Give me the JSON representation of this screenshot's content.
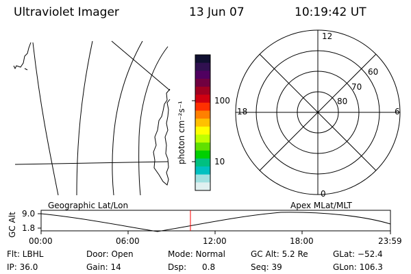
{
  "header": {
    "instrument": "Ultraviolet Imager",
    "date": "13 Jun 07",
    "time": "10:19:42 UT"
  },
  "colorbar": {
    "unit_label": "photon cm⁻²s⁻¹",
    "ticks": [
      "100",
      "10"
    ],
    "colors": [
      "#101030",
      "#301050",
      "#500060",
      "#700040",
      "#a00020",
      "#d00010",
      "#ff3000",
      "#ff8000",
      "#ffc000",
      "#ffff00",
      "#c0ff00",
      "#60e000",
      "#00d000",
      "#00c080",
      "#00c0c0",
      "#a0e0e0",
      "#e0f0f0"
    ]
  },
  "polar_plot": {
    "mlt_labels": {
      "top": "12",
      "bottom": "0",
      "left": "18",
      "right": "6"
    },
    "lat_labels": [
      "60",
      "70",
      "80"
    ]
  },
  "timeline": {
    "y_axis_label": "GC Alt",
    "y_ticks": [
      "9.0",
      "1.8"
    ],
    "left_title": "Geographic Lat/Lon",
    "right_title": "Apex MLat/MLT",
    "x_ticks": [
      "00:00",
      "06:00",
      "12:00",
      "18:00",
      "23:59"
    ]
  },
  "info": {
    "flt": "Flt: LBHL",
    "door": "Door: Open",
    "mode": "Mode: Normal",
    "gc_alt": "GC Alt: 5.2 Re",
    "glat": "GLat: −52.4",
    "ip": "IP: 36.0",
    "gain": "Gain: 14",
    "dsp": "Dsp:      0.8",
    "seq": "Seq: 39",
    "glon": "GLon: 106.3"
  }
}
